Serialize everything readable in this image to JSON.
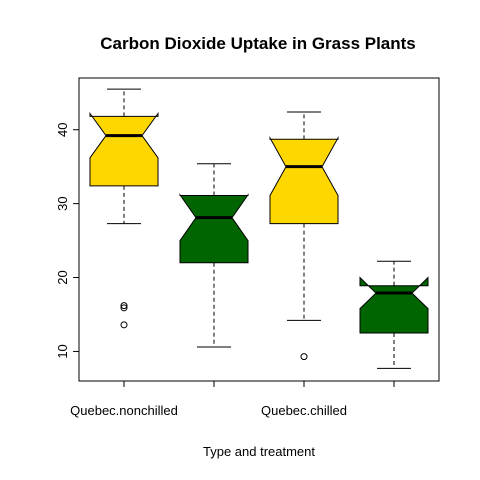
{
  "chart_data": {
    "type": "boxplot",
    "title": "Carbon Dioxide Uptake in Grass Plants",
    "xlabel": "Type and treatment",
    "ylabel": "",
    "ylim": [
      6,
      47
    ],
    "yticks": [
      10,
      20,
      30,
      40
    ],
    "x_tick_labels": [
      "Quebec.nonchilled",
      "",
      "Quebec.chilled",
      ""
    ],
    "notch": true,
    "box_colors": [
      "#FFD700",
      "#006400",
      "#FFD700",
      "#006400"
    ],
    "boxes": [
      {
        "whisker_low": 27.3,
        "q1": 32.4,
        "median": 39.2,
        "q3": 41.8,
        "whisker_high": 45.5,
        "notch_low": 36.2,
        "notch_high": 42.2,
        "outliers": [
          16.2,
          15.9,
          13.6
        ]
      },
      {
        "whisker_low": 10.6,
        "q1": 22.0,
        "median": 28.1,
        "q3": 31.1,
        "whisker_high": 35.4,
        "notch_low": 25.0,
        "notch_high": 31.2,
        "outliers": []
      },
      {
        "whisker_low": 14.2,
        "q1": 27.3,
        "median": 35.0,
        "q3": 38.7,
        "whisker_high": 42.4,
        "notch_low": 31.1,
        "notch_high": 38.9,
        "outliers": [
          9.3
        ]
      },
      {
        "whisker_low": 7.7,
        "q1": 12.5,
        "median": 17.9,
        "q3": 18.9,
        "whisker_high": 22.2,
        "notch_low": 15.8,
        "notch_high": 20.0,
        "outliers": []
      }
    ]
  }
}
